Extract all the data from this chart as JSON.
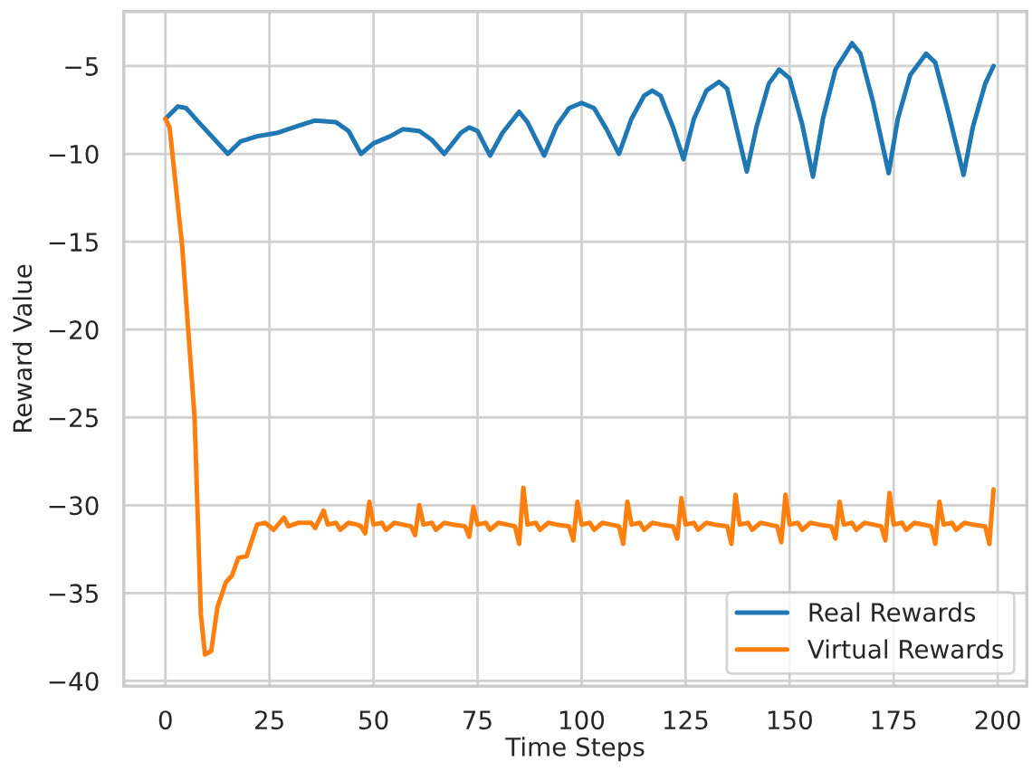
{
  "chart_data": {
    "type": "line",
    "xlabel": "Time Steps",
    "ylabel": "Reward Value",
    "xlim": [
      -10,
      207
    ],
    "ylim": [
      -40.3,
      -1.9
    ],
    "xticks": [
      0,
      25,
      50,
      75,
      100,
      125,
      150,
      175,
      200
    ],
    "yticks": [
      {
        "value": -40,
        "label": "−40"
      },
      {
        "value": -35,
        "label": "−35"
      },
      {
        "value": -30,
        "label": "−30"
      },
      {
        "value": -25,
        "label": "−25"
      },
      {
        "value": -20,
        "label": "−20"
      },
      {
        "value": -15,
        "label": "−15"
      },
      {
        "value": -10,
        "label": "−10"
      },
      {
        "value": -5,
        "label": "−5"
      }
    ],
    "grid": true,
    "legend": "bottom right",
    "series": [
      {
        "name": "Real Rewards",
        "color": "#1f77b4",
        "x": [
          0,
          3,
          5,
          8,
          15,
          18,
          22,
          27,
          32,
          36,
          41,
          44,
          47,
          50,
          54,
          57,
          61,
          64,
          67,
          71,
          73,
          75,
          78,
          81,
          85,
          87,
          91,
          94,
          97,
          100,
          103,
          106,
          109,
          112,
          115,
          117,
          119,
          122,
          124.5,
          127,
          130,
          133,
          135,
          137,
          139.7,
          142,
          145,
          147.5,
          150,
          153,
          155.6,
          158,
          161,
          165,
          167,
          170,
          173.8,
          176,
          179,
          182.8,
          185,
          188,
          191.8,
          194,
          197,
          199
        ],
        "values": [
          -8,
          -7.3,
          -7.4,
          -8.2,
          -10,
          -9.3,
          -9.0,
          -8.8,
          -8.4,
          -8.1,
          -8.2,
          -8.7,
          -10,
          -9.4,
          -9.0,
          -8.6,
          -8.7,
          -9.2,
          -10,
          -8.8,
          -8.5,
          -8.7,
          -10.1,
          -8.8,
          -7.6,
          -8.2,
          -10.1,
          -8.4,
          -7.4,
          -7.1,
          -7.4,
          -8.6,
          -10,
          -8.0,
          -6.7,
          -6.4,
          -6.7,
          -8.5,
          -10.3,
          -8.0,
          -6.4,
          -5.9,
          -6.3,
          -8.3,
          -11,
          -8.5,
          -6.0,
          -5.2,
          -5.7,
          -8.3,
          -11.3,
          -8.0,
          -5.2,
          -3.7,
          -4.3,
          -7.0,
          -11.1,
          -8.0,
          -5.5,
          -4.3,
          -4.8,
          -7.5,
          -11.2,
          -8.5,
          -6.0,
          -5
        ]
      },
      {
        "name": "Virtual Rewards",
        "color": "#ff7f0e",
        "x": [
          0,
          1,
          4,
          7,
          8.5,
          9.5,
          11,
          12.5,
          14.5,
          16,
          17.5,
          19.5,
          22,
          24,
          26,
          28.5,
          29.5,
          32,
          35,
          36,
          38,
          39,
          41,
          42,
          44,
          46,
          47,
          48,
          49,
          50,
          52,
          53,
          55,
          57,
          59,
          60,
          61,
          62,
          64,
          65,
          67,
          69,
          72,
          73,
          74,
          75,
          77,
          78,
          80,
          82,
          84,
          85,
          86,
          87,
          89,
          90,
          92,
          94,
          97,
          98,
          99,
          100,
          102,
          103,
          105,
          107,
          109,
          110,
          111,
          112,
          114,
          115,
          117,
          119,
          122,
          123,
          124,
          125,
          127,
          128,
          130,
          132,
          135,
          136,
          137,
          138,
          140,
          141,
          143,
          145,
          147,
          148,
          149,
          150,
          152,
          153,
          155,
          157,
          160,
          161,
          162,
          163,
          165,
          166,
          168,
          170,
          172,
          173,
          174,
          175,
          177,
          178,
          180,
          182,
          184,
          185,
          186,
          187,
          189,
          190,
          192,
          194,
          197,
          198,
          199
        ],
        "values": [
          -8,
          -8.5,
          -15.2,
          -25,
          -36.2,
          -38.5,
          -38.3,
          -35.8,
          -34.4,
          -34,
          -33.0,
          -32.9,
          -31.1,
          -31,
          -31.4,
          -30.7,
          -31.2,
          -31.0,
          -31.0,
          -31.3,
          -30.3,
          -31.1,
          -31.0,
          -31.4,
          -31.0,
          -31.1,
          -31.2,
          -31.6,
          -29.8,
          -31.1,
          -31.0,
          -31.4,
          -31.0,
          -31.1,
          -31.2,
          -31.7,
          -30.0,
          -31.1,
          -31.0,
          -31.4,
          -31.0,
          -31.1,
          -31.2,
          -31.8,
          -30.1,
          -31.1,
          -31.0,
          -31.4,
          -31.0,
          -31.1,
          -31.2,
          -32.2,
          -29.0,
          -31.1,
          -31.0,
          -31.4,
          -31.0,
          -31.1,
          -31.2,
          -32.0,
          -29.8,
          -31.1,
          -31.0,
          -31.4,
          -31.0,
          -31.1,
          -31.2,
          -32.2,
          -29.8,
          -31.1,
          -31.0,
          -31.4,
          -31.0,
          -31.1,
          -31.2,
          -31.9,
          -29.6,
          -31.1,
          -31.0,
          -31.4,
          -31.0,
          -31.1,
          -31.2,
          -32.2,
          -29.4,
          -31.1,
          -31.0,
          -31.4,
          -31.0,
          -31.1,
          -31.2,
          -32.1,
          -29.4,
          -31.1,
          -31.0,
          -31.4,
          -31.0,
          -31.1,
          -31.2,
          -31.9,
          -29.8,
          -31.1,
          -31.0,
          -31.4,
          -31.0,
          -31.1,
          -31.2,
          -32.0,
          -29.3,
          -31.1,
          -31.0,
          -31.4,
          -31.0,
          -31.1,
          -31.2,
          -32.2,
          -29.8,
          -31.1,
          -31.0,
          -31.4,
          -31.0,
          -31.1,
          -31.2,
          -32.2,
          -29.1
        ]
      }
    ]
  }
}
